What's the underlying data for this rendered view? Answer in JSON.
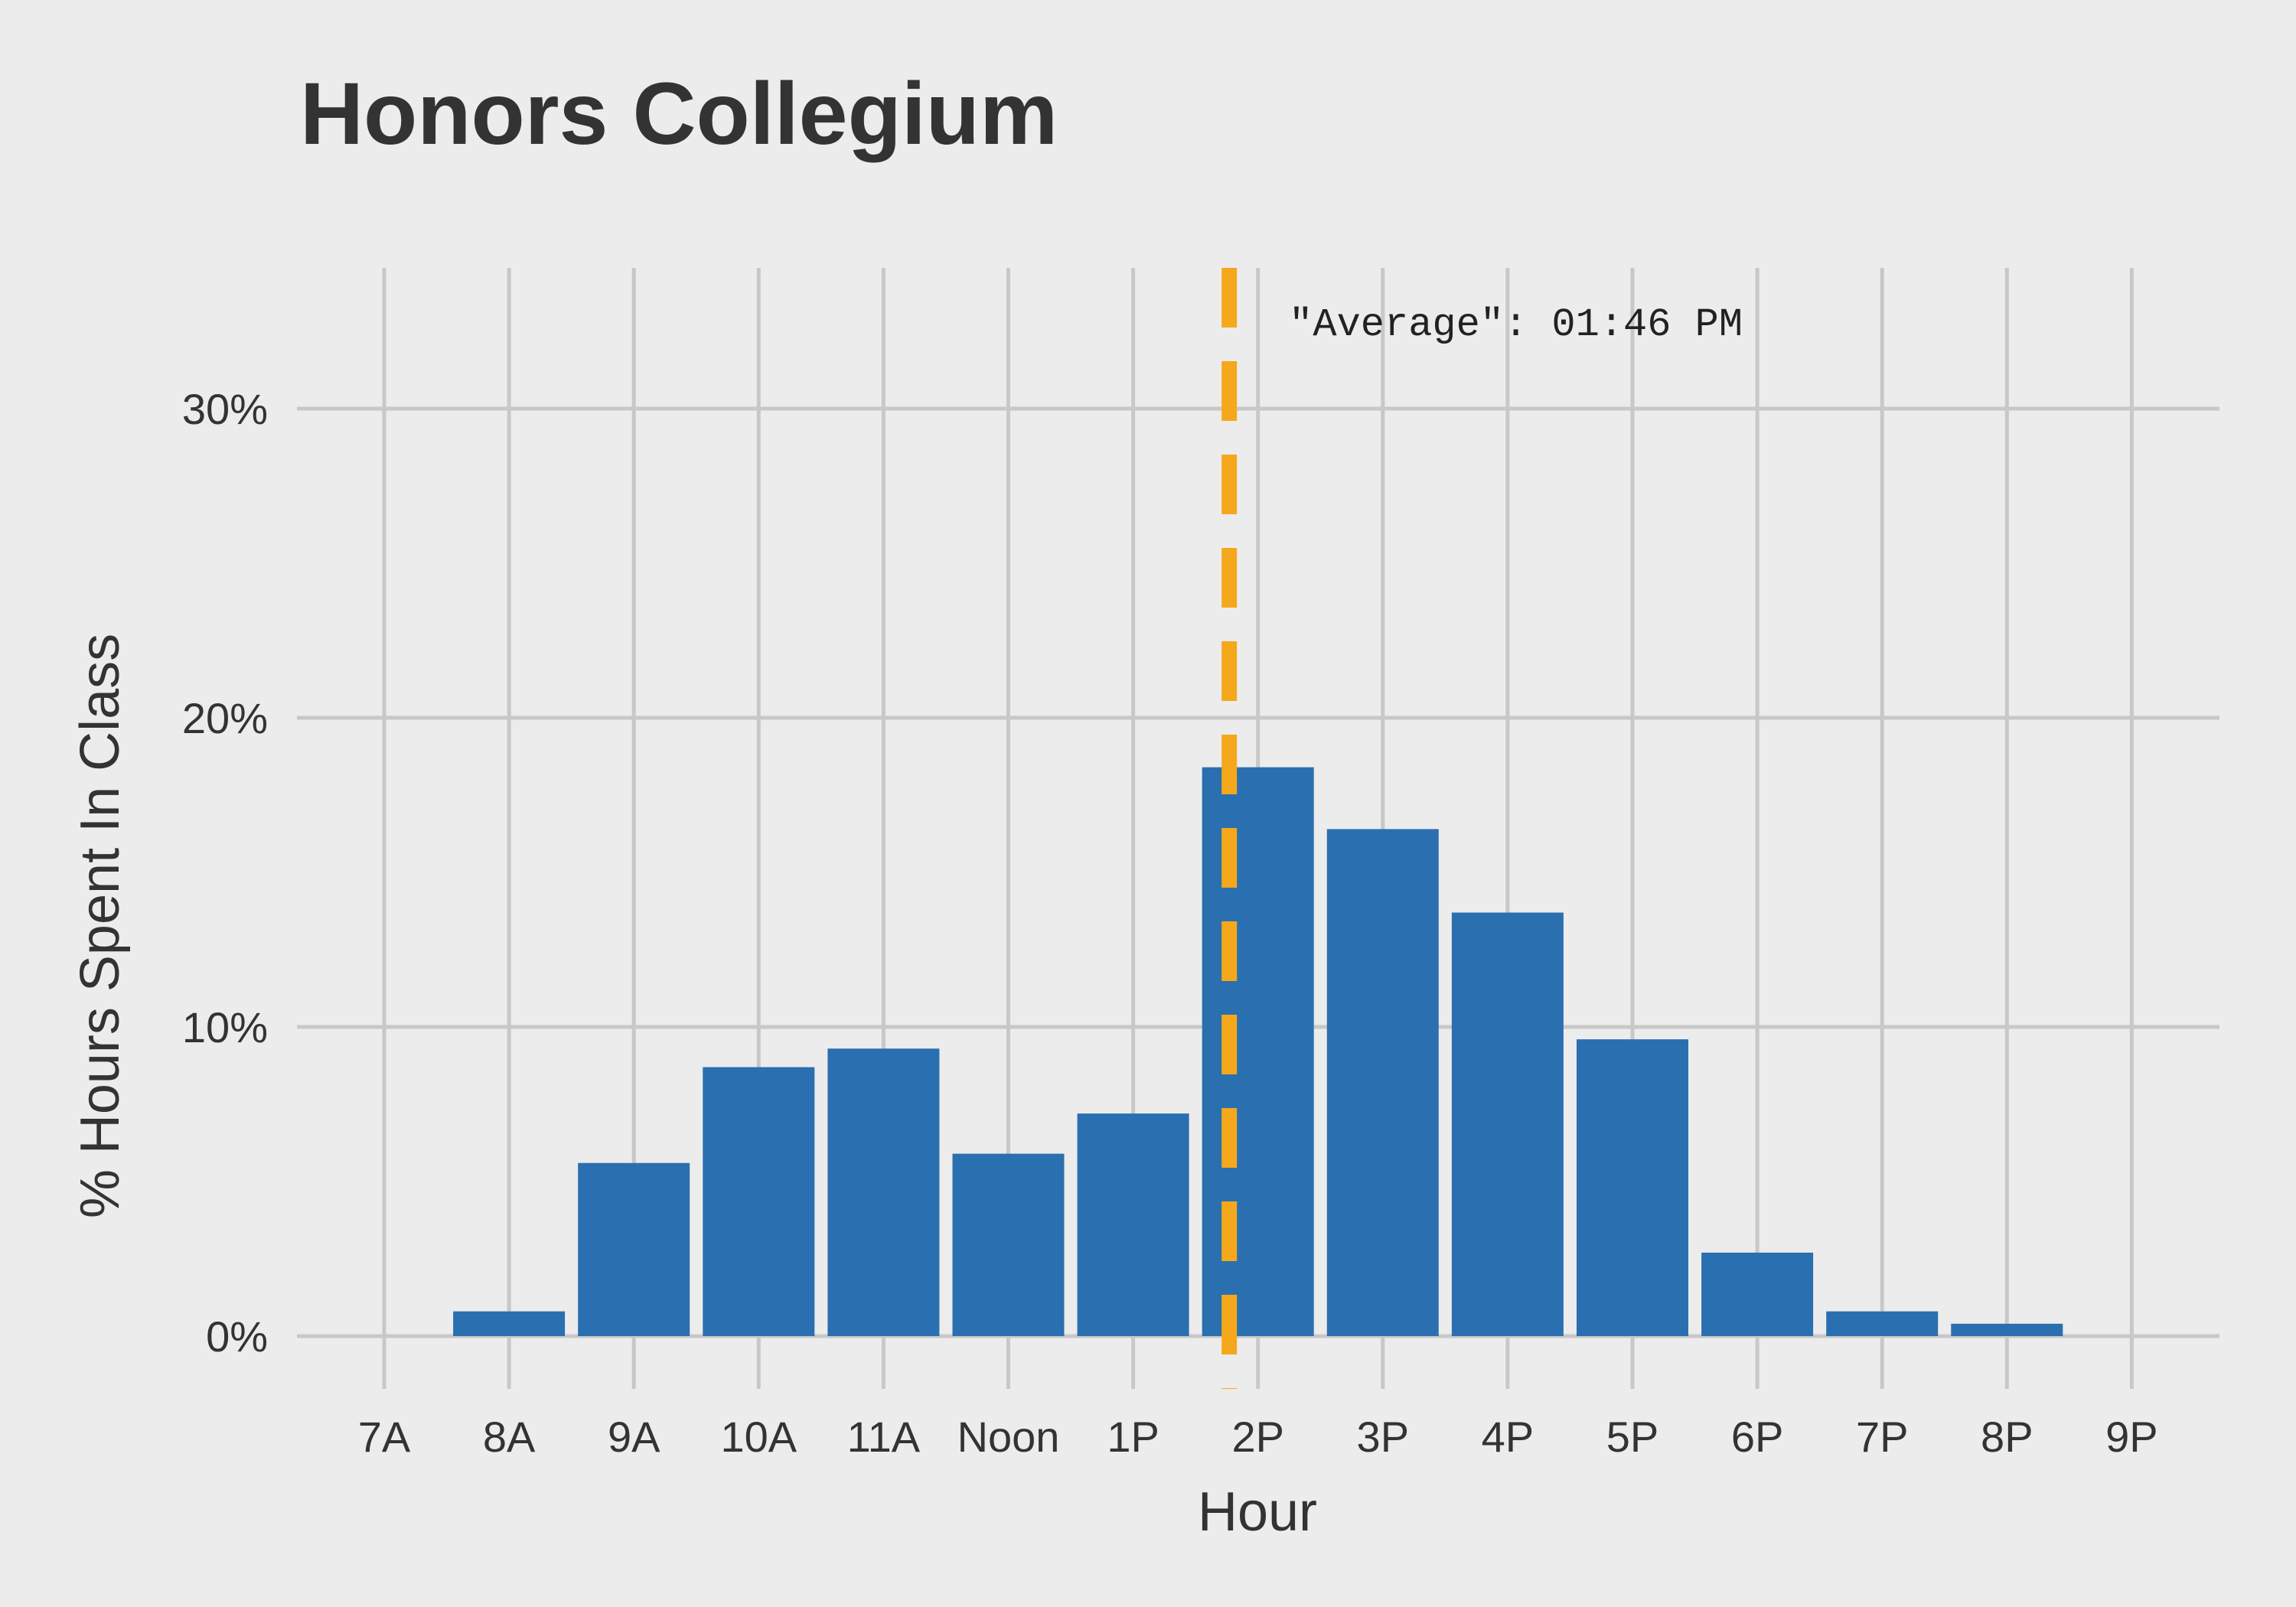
{
  "chart_data": {
    "type": "bar",
    "title": "Honors Collegium",
    "xlabel": "Hour",
    "ylabel": "% Hours Spent In Class",
    "categories": [
      "7A",
      "8A",
      "9A",
      "10A",
      "11A",
      "Noon",
      "1P",
      "2P",
      "3P",
      "4P",
      "5P",
      "6P",
      "7P",
      "8P",
      "9P"
    ],
    "values": [
      0,
      0.8,
      5.6,
      8.7,
      9.3,
      5.9,
      7.2,
      18.4,
      16.4,
      13.7,
      9.6,
      2.7,
      0.8,
      0.4,
      0
    ],
    "ylim": [
      0,
      34
    ],
    "yticks": [
      0,
      10,
      20,
      30
    ],
    "ytick_labels": [
      "0%",
      "10%",
      "20%",
      "30%"
    ],
    "grid": true,
    "reference_line": {
      "x_hour": 13.77,
      "label": "\"Average\": 01:46 PM",
      "style": "dashed"
    },
    "colors": {
      "bar": "#2a6fb0",
      "average_line": "#f5a81c",
      "grid": "#c8c8c8",
      "background": "#ececec",
      "text": "#333333"
    }
  }
}
